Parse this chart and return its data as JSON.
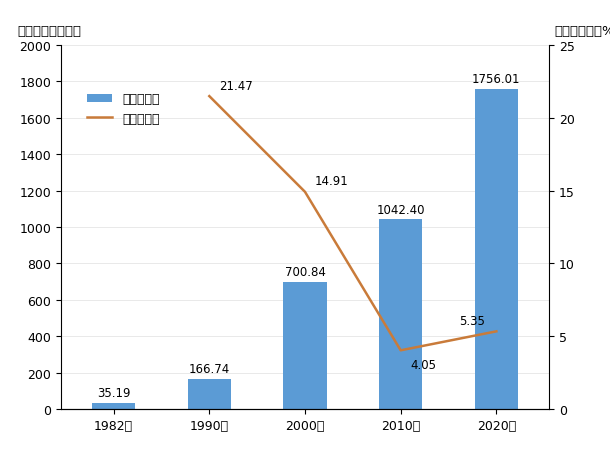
{
  "years": [
    "1982年",
    "1990年",
    "2000年",
    "2010年",
    "2020年"
  ],
  "population": [
    35.19,
    166.74,
    700.84,
    1042.4,
    1756.01
  ],
  "population_labels": [
    "35.19",
    "166.74",
    "700.84",
    "1042.40",
    "1756.01"
  ],
  "growth_rate": [
    null,
    21.47,
    14.91,
    4.05,
    5.35
  ],
  "growth_rate_labels": [
    "21.47",
    "14.91",
    "4.05",
    "5.35"
  ],
  "bar_color": "#5B9BD5",
  "line_color": "#C97B3A",
  "ylim_left": [
    0,
    2000
  ],
  "ylim_right": [
    0,
    25
  ],
  "yticks_left": [
    0,
    200,
    400,
    600,
    800,
    1000,
    1200,
    1400,
    1600,
    1800,
    2000
  ],
  "yticks_right": [
    0,
    5,
    10,
    15,
    20,
    25
  ],
  "ylabel_left": "常住人口（万人）",
  "ylabel_right": "年均增长率（%）",
  "legend_bar": "常住人口数",
  "legend_line": "年均增长率",
  "background_color": "#ffffff",
  "bar_label_fontsize": 8.5,
  "axis_label_fontsize": 9.5,
  "tick_fontsize": 9,
  "legend_fontsize": 9,
  "bar_width": 0.45
}
